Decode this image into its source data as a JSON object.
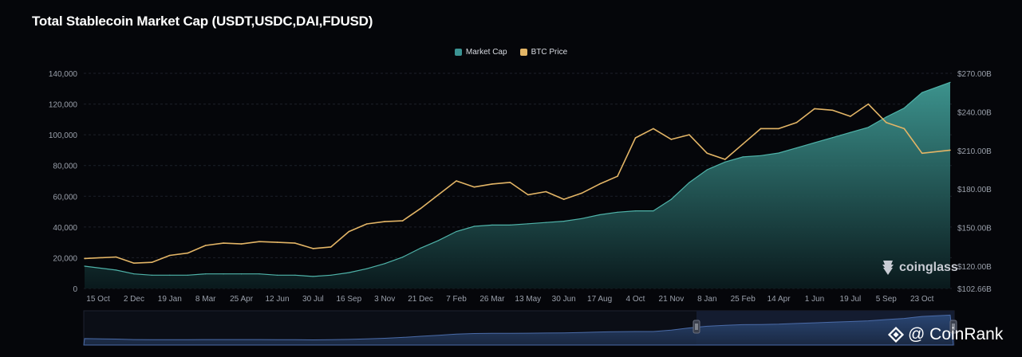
{
  "title": "Total Stablecoin Market Cap (USDT,USDC,DAI,FDUSD)",
  "legend": [
    {
      "label": "Market Cap",
      "color": "#3b9393"
    },
    {
      "label": "BTC Price",
      "color": "#e3b566"
    }
  ],
  "watermark": {
    "brand": "coinglass",
    "icon": "coinglass-logo-icon"
  },
  "credit": {
    "text": "@ CoinRank",
    "icon": "coinrank-logo-icon"
  },
  "chart_data": {
    "type": "area",
    "title": "Total Stablecoin Market Cap (USDT,USDC,DAI,FDUSD)",
    "x_ticks": [
      "15 Oct",
      "2 Dec",
      "19 Jan",
      "8 Mar",
      "25 Apr",
      "12 Jun",
      "30 Jul",
      "16 Sep",
      "3 Nov",
      "21 Dec",
      "7 Feb",
      "26 Mar",
      "13 May",
      "30 Jun",
      "17 Aug",
      "4 Oct",
      "21 Nov",
      "8 Jan",
      "25 Feb",
      "14 Apr",
      "1 Jun",
      "19 Jul",
      "5 Sep",
      "23 Oct"
    ],
    "left_axis": {
      "ticks": [
        "140,000",
        "120,000",
        "100,000",
        "80,000",
        "60,000",
        "40,000",
        "20,000",
        "0"
      ],
      "range": [
        0,
        140000
      ]
    },
    "right_axis": {
      "ticks": [
        "$270.00B",
        "$240.00B",
        "$210.00B",
        "$180.00B",
        "$150.00B",
        "$120.00B",
        "$102.66B"
      ],
      "range": [
        102.66,
        270
      ]
    },
    "grid": true,
    "legend_position": "top-center",
    "x_index": [
      0,
      0.5,
      1,
      1.5,
      2,
      2.5,
      3,
      3.5,
      4,
      4.5,
      5,
      5.5,
      6,
      6.5,
      7,
      7.5,
      8,
      8.5,
      9,
      9.5,
      10,
      10.5,
      11,
      11.5,
      12,
      12.5,
      13,
      13.5,
      14,
      14.5,
      15,
      15.5,
      16,
      16.5,
      17,
      17.5,
      18,
      18.5,
      19,
      19.5,
      20,
      20.5,
      21,
      21.5,
      22,
      22.5,
      23,
      23.5
    ],
    "series": [
      {
        "name": "Market Cap",
        "axis": "right",
        "color": "#3b9393",
        "values": [
          120,
          117,
          114,
          113,
          113,
          113,
          114,
          114,
          114,
          114,
          113,
          113,
          112,
          113,
          115,
          118,
          122,
          127,
          134,
          140,
          147,
          151,
          152,
          152,
          153,
          154,
          155,
          157,
          160,
          162,
          163,
          163,
          172,
          185,
          195,
          201,
          205,
          206,
          208,
          212,
          216,
          220,
          224,
          228,
          236,
          243,
          255,
          263
        ]
      },
      {
        "name": "BTC Price",
        "axis": "left",
        "color": "#e3b566",
        "values": [
          19500,
          20500,
          16500,
          17000,
          21500,
          23000,
          28000,
          29500,
          29000,
          30500,
          30000,
          29500,
          26000,
          27000,
          37000,
          42000,
          43500,
          44000,
          52000,
          61000,
          70000,
          66000,
          68000,
          69000,
          61000,
          63000,
          58000,
          62000,
          68000,
          73000,
          98000,
          104000,
          97000,
          100000,
          88000,
          84000,
          94000,
          104000,
          104000,
          108000,
          117000,
          116000,
          112000,
          120000,
          108000,
          104000,
          88000,
          90000
        ]
      }
    ]
  }
}
